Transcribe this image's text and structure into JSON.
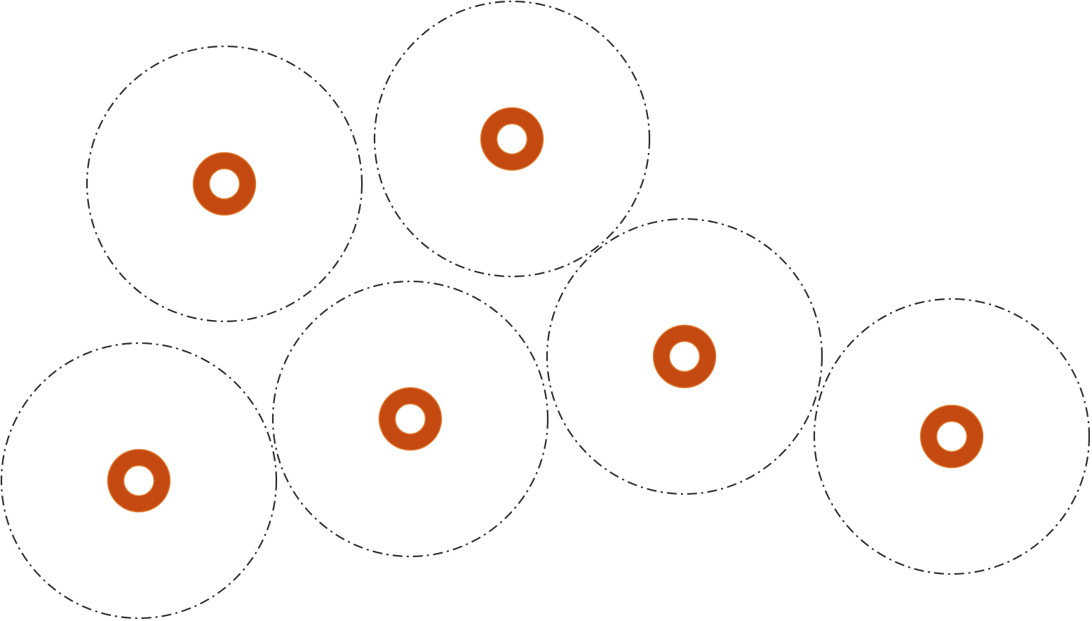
{
  "diagram": {
    "colors": {
      "background": "#ffffff",
      "zone_stroke": "#2b2b2b",
      "marker": "#c44a12",
      "marker_edge": "#e07a2e"
    },
    "icons": {
      "zone": "dash-dot-circle-icon",
      "marker": "ring-marker-icon"
    },
    "zone_count": 6,
    "marker_count": 6
  }
}
